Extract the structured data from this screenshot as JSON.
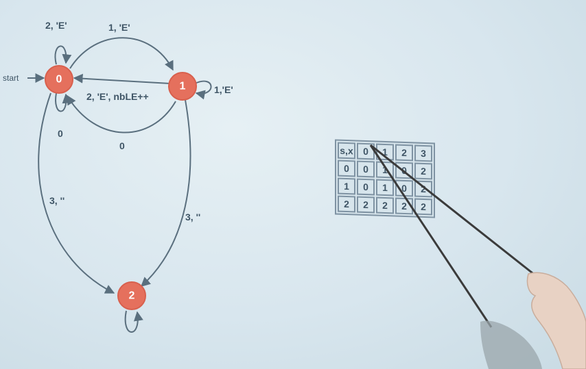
{
  "diagram": {
    "states": [
      {
        "id": "0",
        "label": "0"
      },
      {
        "id": "1",
        "label": "1"
      },
      {
        "id": "2",
        "label": "2"
      }
    ],
    "start_label": "start",
    "transitions": [
      {
        "from": "0",
        "to": "0",
        "label": "2, 'E'"
      },
      {
        "from": "0",
        "to": "1",
        "label": "1, 'E'"
      },
      {
        "from": "1",
        "to": "0",
        "label": "2, 'E', nbLE++"
      },
      {
        "from": "1",
        "to": "1",
        "label": "1,'E'"
      },
      {
        "from": "0",
        "to": "0",
        "label": "0"
      },
      {
        "from": "1",
        "to": "0",
        "label": "0"
      },
      {
        "from": "0",
        "to": "2",
        "label": "3, ''"
      },
      {
        "from": "1",
        "to": "2",
        "label": "3, ''"
      }
    ]
  },
  "table": {
    "header": [
      "s,x",
      "0",
      "1",
      "2",
      "3"
    ],
    "rows": [
      [
        "0",
        "0",
        "1",
        "0",
        "2"
      ],
      [
        "1",
        "0",
        "1",
        "0",
        "2"
      ],
      [
        "2",
        "2",
        "2",
        "2",
        "2"
      ]
    ]
  },
  "colors": {
    "node": "#e5705d",
    "edge": "#5a6f7e",
    "background": "#d9e7ee"
  }
}
